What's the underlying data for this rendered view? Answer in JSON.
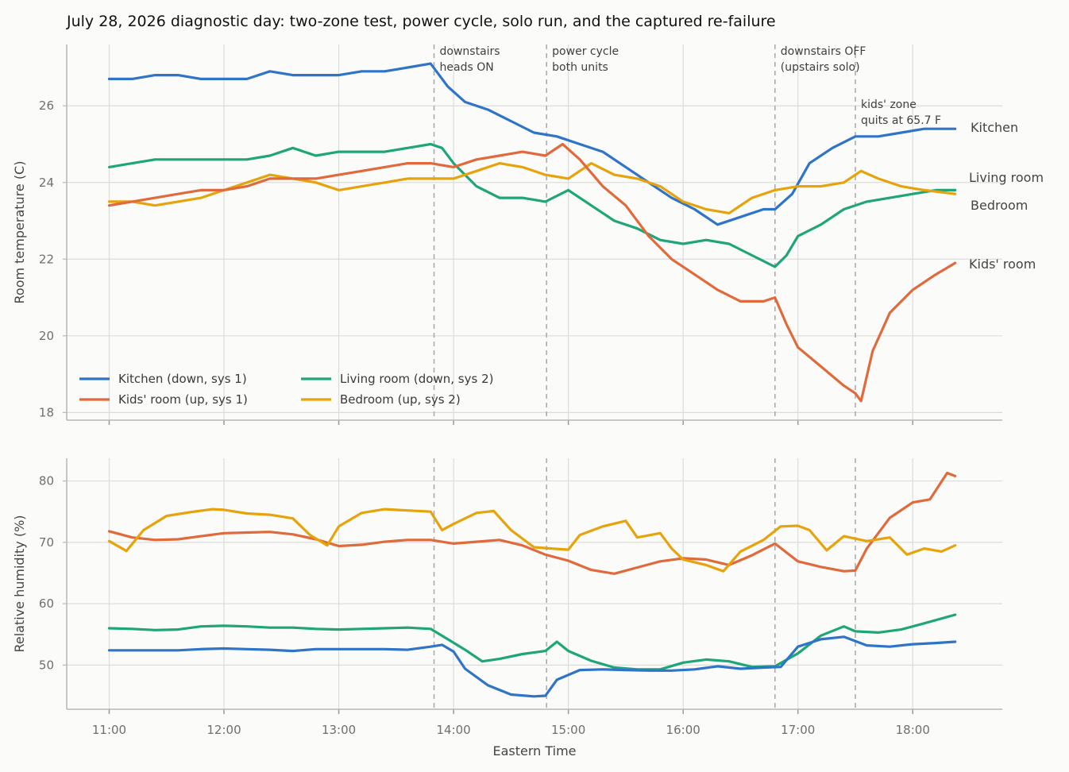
{
  "chart_data": {
    "type": "line",
    "title": "July 28, 2026 diagnostic day: two-zone test, power cycle, solo run, and the captured re-failure",
    "xlabel": "Eastern Time",
    "x_ticks": [
      "11:00",
      "12:00",
      "13:00",
      "14:00",
      "15:00",
      "16:00",
      "17:00",
      "18:00"
    ],
    "xlim": [
      10.63,
      18.78
    ],
    "colors": {
      "Kitchen": "#2f74c8",
      "Kids' room": "#e06a3b",
      "Living room": "#1fa57a",
      "Bedroom": "#e6a30c"
    },
    "events": [
      {
        "x": 13.83,
        "label_lines": [
          "downstairs",
          "heads ON"
        ]
      },
      {
        "x": 14.81,
        "label_lines": [
          "power cycle",
          "both units"
        ]
      },
      {
        "x": 16.8,
        "label_lines": [
          "downstairs OFF",
          "(upstairs solo)"
        ]
      },
      {
        "x": 17.5,
        "label_lines": [
          "kids' zone",
          "quits at 65.7 F"
        ]
      }
    ],
    "legend": [
      "Kitchen (down, sys 1)",
      "Kids' room (up, sys 1)",
      "Living room (down, sys 2)",
      "Bedroom (up, sys 2)"
    ],
    "panels": [
      {
        "ylabel": "Room temperature (C)",
        "ylim": [
          17.8,
          27.6
        ],
        "y_ticks": [
          18,
          20,
          22,
          24,
          26
        ],
        "end_labels": [
          "Kitchen",
          "Living room",
          "Bedroom",
          "Kids' room"
        ],
        "series": [
          {
            "name": "Kitchen",
            "x": [
              11.0,
              11.2,
              11.4,
              11.6,
              11.8,
              12.0,
              12.2,
              12.4,
              12.6,
              12.8,
              13.0,
              13.2,
              13.4,
              13.6,
              13.8,
              13.95,
              14.1,
              14.3,
              14.5,
              14.7,
              14.9,
              15.1,
              15.3,
              15.5,
              15.7,
              15.9,
              16.1,
              16.3,
              16.5,
              16.7,
              16.8,
              16.95,
              17.1,
              17.3,
              17.5,
              17.7,
              17.9,
              18.1,
              18.37
            ],
            "y": [
              26.7,
              26.7,
              26.8,
              26.8,
              26.7,
              26.7,
              26.7,
              26.9,
              26.8,
              26.8,
              26.8,
              26.9,
              26.9,
              27.0,
              27.1,
              26.5,
              26.1,
              25.9,
              25.6,
              25.3,
              25.2,
              25.0,
              24.8,
              24.4,
              24.0,
              23.6,
              23.3,
              22.9,
              23.1,
              23.3,
              23.3,
              23.7,
              24.5,
              24.9,
              25.2,
              25.2,
              25.3,
              25.4,
              25.4
            ]
          },
          {
            "name": "Living room",
            "x": [
              11.0,
              11.2,
              11.4,
              11.6,
              11.8,
              12.0,
              12.2,
              12.4,
              12.6,
              12.8,
              13.0,
              13.2,
              13.4,
              13.6,
              13.8,
              13.9,
              14.0,
              14.2,
              14.4,
              14.6,
              14.8,
              15.0,
              15.2,
              15.4,
              15.6,
              15.8,
              16.0,
              16.2,
              16.4,
              16.6,
              16.8,
              16.9,
              17.0,
              17.2,
              17.4,
              17.6,
              17.8,
              18.0,
              18.2,
              18.37
            ],
            "y": [
              24.4,
              24.5,
              24.6,
              24.6,
              24.6,
              24.6,
              24.6,
              24.7,
              24.9,
              24.7,
              24.8,
              24.8,
              24.8,
              24.9,
              25.0,
              24.9,
              24.5,
              23.9,
              23.6,
              23.6,
              23.5,
              23.8,
              23.4,
              23.0,
              22.8,
              22.5,
              22.4,
              22.5,
              22.4,
              22.1,
              21.8,
              22.1,
              22.6,
              22.9,
              23.3,
              23.5,
              23.6,
              23.7,
              23.8,
              23.8
            ]
          },
          {
            "name": "Bedroom",
            "x": [
              11.0,
              11.2,
              11.4,
              11.6,
              11.8,
              12.0,
              12.2,
              12.4,
              12.6,
              12.8,
              13.0,
              13.2,
              13.4,
              13.6,
              13.8,
              14.0,
              14.2,
              14.4,
              14.6,
              14.8,
              15.0,
              15.2,
              15.4,
              15.6,
              15.8,
              16.0,
              16.2,
              16.4,
              16.6,
              16.8,
              17.0,
              17.2,
              17.4,
              17.55,
              17.7,
              17.9,
              18.1,
              18.37
            ],
            "y": [
              23.5,
              23.5,
              23.4,
              23.5,
              23.6,
              23.8,
              24.0,
              24.2,
              24.1,
              24.0,
              23.8,
              23.9,
              24.0,
              24.1,
              24.1,
              24.1,
              24.3,
              24.5,
              24.4,
              24.2,
              24.1,
              24.5,
              24.2,
              24.1,
              23.9,
              23.5,
              23.3,
              23.2,
              23.6,
              23.8,
              23.9,
              23.9,
              24.0,
              24.3,
              24.1,
              23.9,
              23.8,
              23.7
            ]
          },
          {
            "name": "Kids' room",
            "x": [
              11.0,
              11.2,
              11.4,
              11.6,
              11.8,
              12.0,
              12.2,
              12.4,
              12.6,
              12.8,
              13.0,
              13.2,
              13.4,
              13.6,
              13.8,
              14.0,
              14.2,
              14.4,
              14.6,
              14.8,
              14.95,
              15.1,
              15.3,
              15.5,
              15.7,
              15.9,
              16.1,
              16.3,
              16.5,
              16.7,
              16.8,
              16.9,
              17.0,
              17.2,
              17.4,
              17.5,
              17.55,
              17.65,
              17.8,
              18.0,
              18.2,
              18.37
            ],
            "y": [
              23.4,
              23.5,
              23.6,
              23.7,
              23.8,
              23.8,
              23.9,
              24.1,
              24.1,
              24.1,
              24.2,
              24.3,
              24.4,
              24.5,
              24.5,
              24.4,
              24.6,
              24.7,
              24.8,
              24.7,
              25.0,
              24.6,
              23.9,
              23.4,
              22.6,
              22.0,
              21.6,
              21.2,
              20.9,
              20.9,
              21.0,
              20.3,
              19.7,
              19.2,
              18.7,
              18.5,
              18.3,
              19.6,
              20.6,
              21.2,
              21.6,
              21.9
            ]
          }
        ]
      },
      {
        "ylabel": "Relative humidity (%)",
        "ylim": [
          42.8,
          83.7
        ],
        "y_ticks": [
          50,
          60,
          70,
          80
        ],
        "series": [
          {
            "name": "Kids' room",
            "x": [
              11.0,
              11.2,
              11.4,
              11.6,
              11.8,
              12.0,
              12.2,
              12.4,
              12.6,
              12.8,
              13.0,
              13.2,
              13.4,
              13.6,
              13.8,
              14.0,
              14.2,
              14.4,
              14.6,
              14.8,
              15.0,
              15.2,
              15.4,
              15.6,
              15.8,
              16.0,
              16.2,
              16.4,
              16.6,
              16.8,
              17.0,
              17.2,
              17.4,
              17.5,
              17.6,
              17.8,
              18.0,
              18.15,
              18.3,
              18.37
            ],
            "y": [
              71.8,
              70.8,
              70.4,
              70.5,
              71.0,
              71.5,
              71.6,
              71.7,
              71.3,
              70.5,
              69.4,
              69.6,
              70.1,
              70.4,
              70.4,
              69.8,
              70.1,
              70.4,
              69.5,
              68.0,
              67.0,
              65.5,
              64.9,
              65.9,
              66.9,
              67.4,
              67.2,
              66.3,
              67.9,
              69.8,
              66.9,
              66.0,
              65.3,
              65.4,
              69.0,
              74.0,
              76.5,
              77.0,
              81.3,
              80.8
            ]
          },
          {
            "name": "Bedroom",
            "x": [
              11.0,
              11.15,
              11.3,
              11.5,
              11.7,
              11.9,
              12.0,
              12.2,
              12.4,
              12.6,
              12.75,
              12.9,
              13.0,
              13.2,
              13.4,
              13.6,
              13.8,
              13.9,
              14.0,
              14.2,
              14.35,
              14.5,
              14.7,
              14.85,
              15.0,
              15.1,
              15.3,
              15.5,
              15.6,
              15.8,
              15.9,
              16.0,
              16.2,
              16.35,
              16.5,
              16.7,
              16.85,
              17.0,
              17.1,
              17.25,
              17.4,
              17.6,
              17.8,
              17.95,
              18.1,
              18.25,
              18.37
            ],
            "y": [
              70.2,
              68.6,
              72.0,
              74.3,
              74.9,
              75.4,
              75.3,
              74.7,
              74.5,
              73.9,
              71.2,
              69.5,
              72.6,
              74.8,
              75.4,
              75.2,
              75.0,
              72.0,
              73.0,
              74.8,
              75.1,
              72.0,
              69.2,
              69.0,
              68.8,
              71.2,
              72.6,
              73.5,
              70.8,
              71.5,
              69.0,
              67.2,
              66.3,
              65.3,
              68.5,
              70.4,
              72.6,
              72.7,
              72.0,
              68.7,
              71.0,
              70.2,
              70.8,
              68.0,
              69.0,
              68.5,
              69.5
            ]
          },
          {
            "name": "Living room",
            "x": [
              11.0,
              11.2,
              11.4,
              11.6,
              11.8,
              12.0,
              12.2,
              12.4,
              12.6,
              12.8,
              13.0,
              13.2,
              13.4,
              13.6,
              13.8,
              13.95,
              14.1,
              14.25,
              14.4,
              14.6,
              14.8,
              14.9,
              15.0,
              15.2,
              15.4,
              15.6,
              15.8,
              16.0,
              16.2,
              16.4,
              16.6,
              16.8,
              17.0,
              17.2,
              17.4,
              17.5,
              17.7,
              17.9,
              18.1,
              18.37
            ],
            "y": [
              56.0,
              55.9,
              55.7,
              55.8,
              56.3,
              56.4,
              56.3,
              56.1,
              56.1,
              55.9,
              55.8,
              55.9,
              56.0,
              56.1,
              55.9,
              54.2,
              52.5,
              50.6,
              51.0,
              51.8,
              52.3,
              53.8,
              52.3,
              50.7,
              49.6,
              49.3,
              49.3,
              50.4,
              50.9,
              50.6,
              49.7,
              49.8,
              51.9,
              54.8,
              56.3,
              55.5,
              55.3,
              55.8,
              56.8,
              58.2
            ]
          },
          {
            "name": "Kitchen",
            "x": [
              11.0,
              11.2,
              11.4,
              11.6,
              11.8,
              12.0,
              12.2,
              12.4,
              12.6,
              12.8,
              13.0,
              13.2,
              13.4,
              13.6,
              13.8,
              13.9,
              14.0,
              14.1,
              14.3,
              14.5,
              14.7,
              14.8,
              14.9,
              15.1,
              15.3,
              15.5,
              15.7,
              15.9,
              16.1,
              16.3,
              16.5,
              16.7,
              16.85,
              17.0,
              17.2,
              17.4,
              17.6,
              17.8,
              18.0,
              18.2,
              18.37
            ],
            "y": [
              52.4,
              52.4,
              52.4,
              52.4,
              52.6,
              52.7,
              52.6,
              52.5,
              52.3,
              52.6,
              52.6,
              52.6,
              52.6,
              52.5,
              53.0,
              53.3,
              52.2,
              49.4,
              46.7,
              45.2,
              44.9,
              45.0,
              47.6,
              49.2,
              49.3,
              49.2,
              49.1,
              49.1,
              49.3,
              49.8,
              49.4,
              49.6,
              49.7,
              53.0,
              54.2,
              54.6,
              53.2,
              53.0,
              53.4,
              53.6,
              53.8
            ]
          }
        ]
      }
    ]
  }
}
